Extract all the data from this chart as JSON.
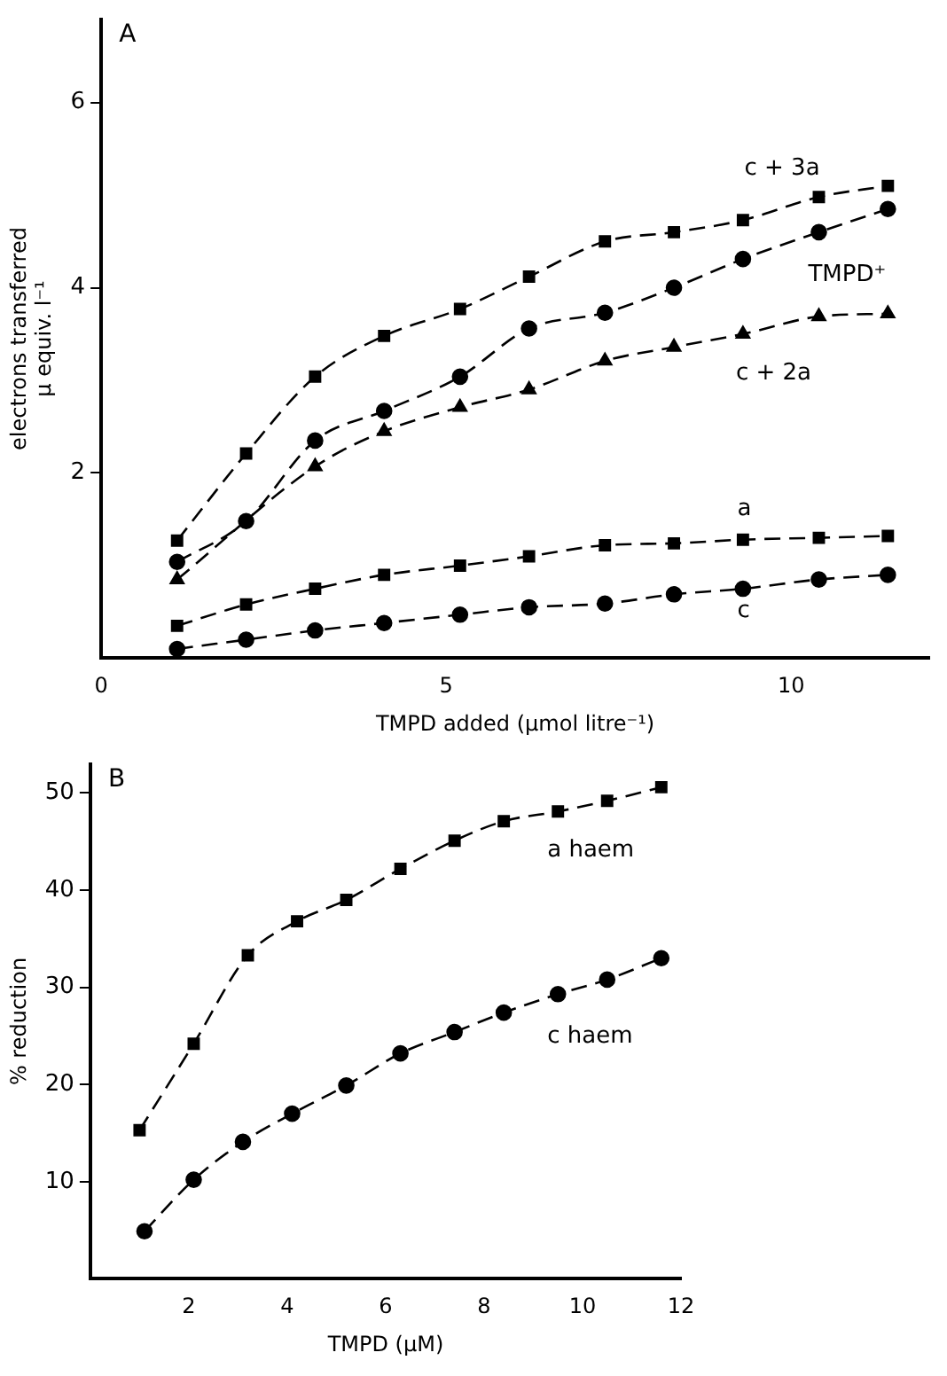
{
  "chart_data": [
    {
      "type": "line",
      "title": "A",
      "xlabel": "TMPD added (µmol litre⁻¹)",
      "ylabel": "electrons transferred\nμ equiv. l⁻¹",
      "xlim": [
        0,
        12
      ],
      "xticks": [
        0,
        5,
        10
      ],
      "ylim": [
        0,
        6.9
      ],
      "yticks": [
        2,
        4,
        6
      ],
      "grid": false,
      "legend": false,
      "line_style": "dashed",
      "series": [
        {
          "name": "c + 3a",
          "color": "#000000",
          "marker": "square",
          "x": [
            1.1,
            2.1,
            3.1,
            4.1,
            5.2,
            6.2,
            7.3,
            8.3,
            9.3,
            10.4,
            11.4
          ],
          "values": [
            1.27,
            2.21,
            3.04,
            3.48,
            3.77,
            4.12,
            4.5,
            4.6,
            4.73,
            4.98,
            5.1
          ]
        },
        {
          "name": "TMPD⁺",
          "color": "#000000",
          "marker": "circle",
          "x": [
            1.1,
            2.1,
            3.1,
            4.1,
            5.2,
            6.2,
            7.3,
            8.3,
            9.3,
            10.4,
            11.4
          ],
          "values": [
            1.04,
            1.48,
            2.35,
            2.67,
            3.04,
            3.56,
            3.73,
            4.0,
            4.31,
            4.6,
            4.85
          ]
        },
        {
          "name": "c + 2a",
          "color": "#000000",
          "marker": "triangle",
          "x": [
            1.1,
            3.1,
            4.1,
            5.2,
            6.2,
            7.3,
            8.3,
            9.3,
            10.4,
            11.4
          ],
          "values": [
            0.85,
            2.07,
            2.45,
            2.71,
            2.9,
            3.21,
            3.36,
            3.5,
            3.69,
            3.72
          ]
        },
        {
          "name": "a",
          "color": "#000000",
          "marker": "square",
          "x": [
            1.1,
            2.1,
            3.1,
            4.1,
            5.2,
            6.2,
            7.3,
            8.3,
            9.3,
            10.4,
            11.4
          ],
          "values": [
            0.35,
            0.58,
            0.75,
            0.9,
            1.0,
            1.1,
            1.22,
            1.24,
            1.28,
            1.3,
            1.32
          ]
        },
        {
          "name": "c",
          "color": "#000000",
          "marker": "circle",
          "x": [
            1.1,
            2.1,
            3.1,
            4.1,
            5.2,
            6.2,
            7.3,
            8.3,
            9.3,
            10.4,
            11.4
          ],
          "values": [
            0.1,
            0.2,
            0.3,
            0.38,
            0.47,
            0.55,
            0.59,
            0.69,
            0.75,
            0.85,
            0.9
          ]
        }
      ]
    },
    {
      "type": "line",
      "title": "B",
      "xlabel": "TMPD (µM)",
      "ylabel": "% reduction",
      "xlim": [
        0,
        12
      ],
      "xticks": [
        2,
        4,
        6,
        8,
        10,
        12
      ],
      "ylim": [
        0,
        53
      ],
      "yticks": [
        10,
        20,
        30,
        40,
        50
      ],
      "grid": false,
      "legend": false,
      "line_style": "dashed",
      "series": [
        {
          "name": "a haem",
          "color": "#000000",
          "marker": "square",
          "x": [
            1.0,
            2.1,
            3.2,
            4.2,
            5.2,
            6.3,
            7.4,
            8.4,
            9.5,
            10.5,
            11.6
          ],
          "values": [
            15.3,
            24.2,
            33.3,
            36.8,
            39.0,
            42.2,
            45.1,
            47.1,
            48.1,
            49.2,
            50.6
          ]
        },
        {
          "name": "c haem",
          "color": "#000000",
          "marker": "circle",
          "x": [
            1.1,
            2.1,
            3.1,
            4.1,
            5.2,
            6.3,
            7.4,
            8.4,
            9.5,
            10.5,
            11.6
          ],
          "values": [
            4.9,
            10.2,
            14.1,
            17.0,
            19.9,
            23.2,
            25.4,
            27.4,
            29.3,
            30.8,
            33.0
          ]
        }
      ]
    }
  ]
}
